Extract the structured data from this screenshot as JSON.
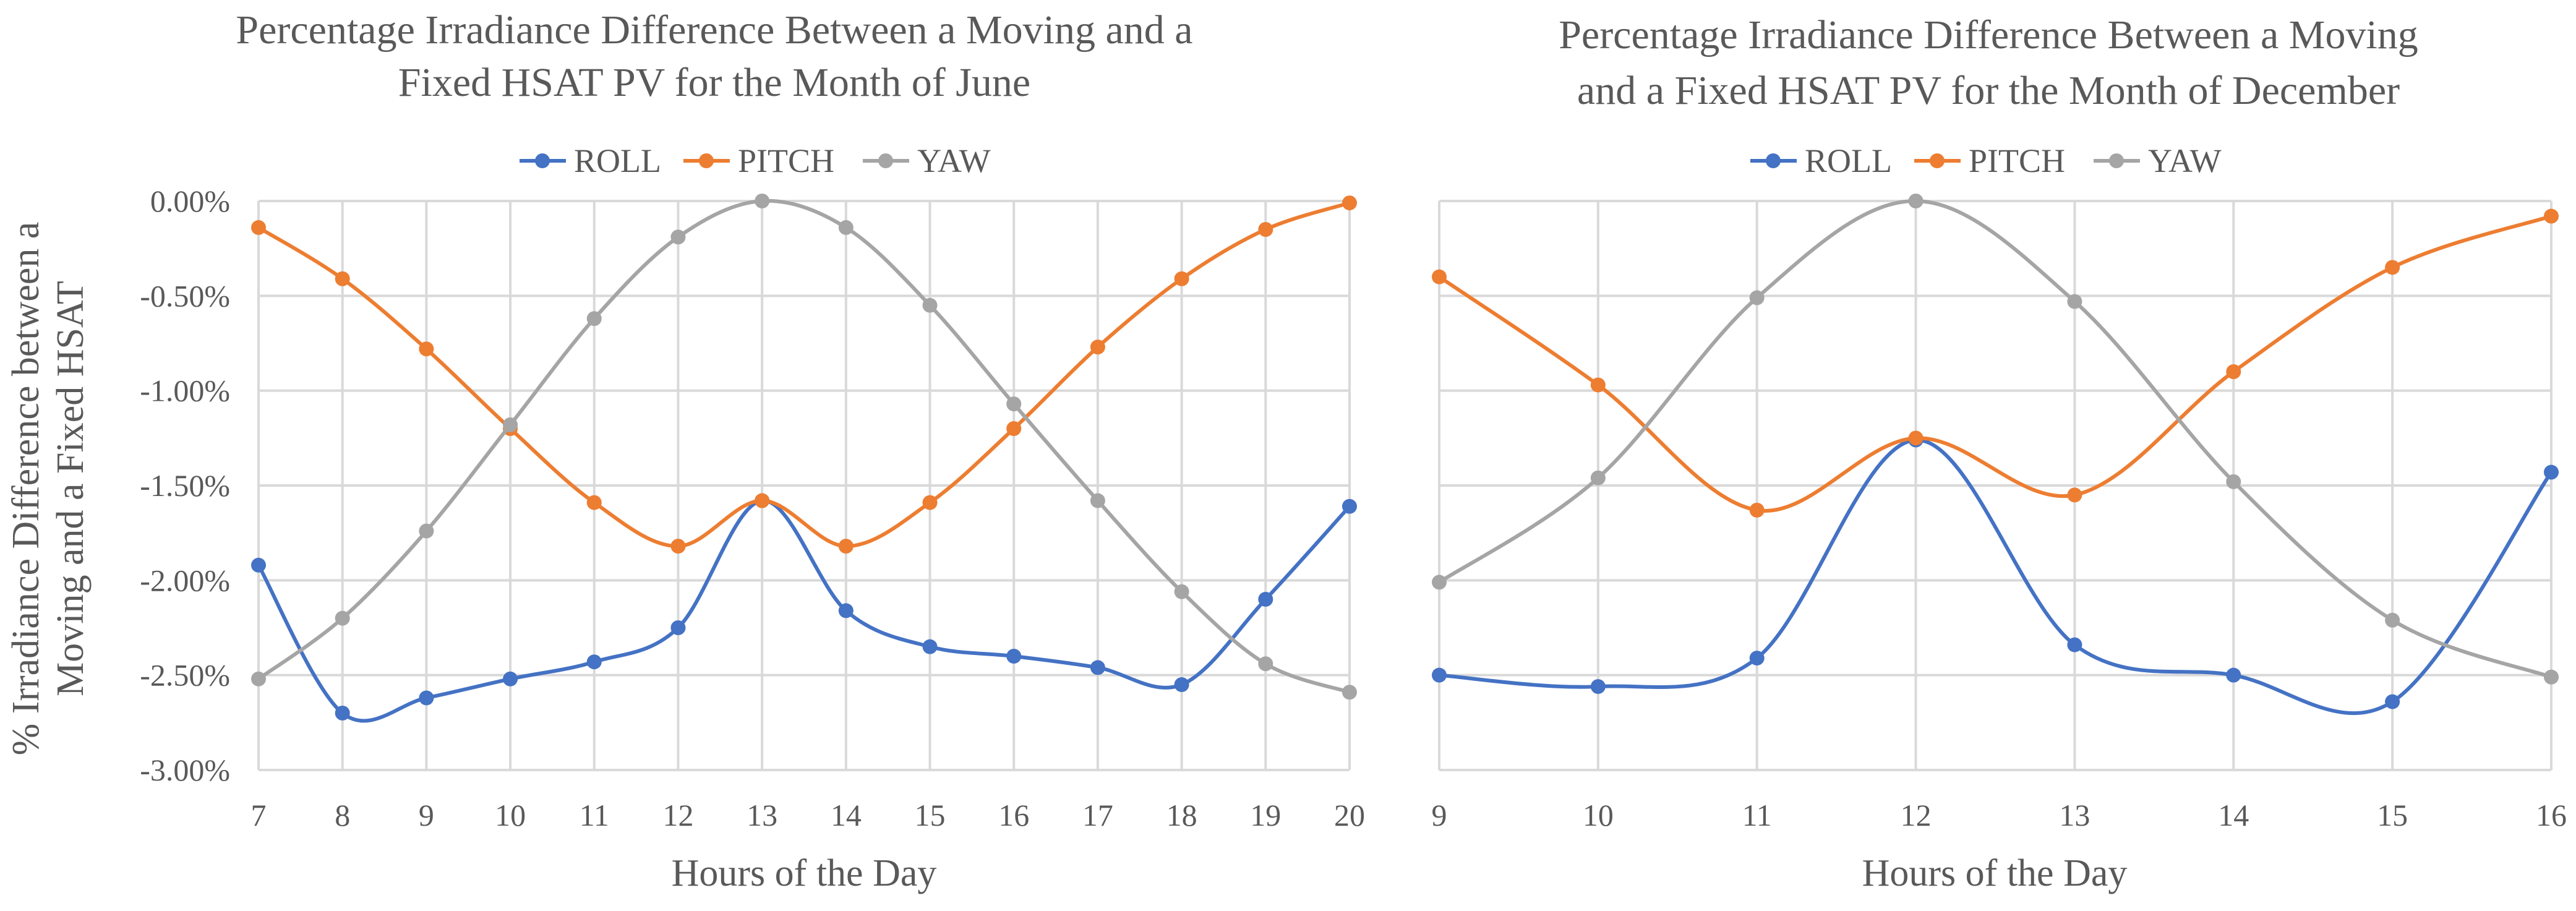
{
  "colors": {
    "ROLL": "#4472c4",
    "PITCH": "#ed7d31",
    "YAW": "#a5a5a5",
    "grid": "#d9d9d9",
    "text": "#595959"
  },
  "y_axis_title": [
    "% Irradiance Difference between a",
    "Moving and a Fixed HSAT"
  ],
  "chart_data": [
    {
      "type": "line",
      "title": [
        "Percentage Irradiance Difference Between a Moving and a",
        "Fixed HSAT PV for the Month of June"
      ],
      "xlabel": "Hours of the Day",
      "categories": [
        "7",
        "8",
        "9",
        "10",
        "11",
        "12",
        "13",
        "14",
        "15",
        "16",
        "17",
        "18",
        "19",
        "20"
      ],
      "ylim": [
        -3.0,
        0.0
      ],
      "yticks": [
        0.0,
        -0.5,
        -1.0,
        -1.5,
        -2.0,
        -2.5,
        -3.0
      ],
      "ytick_labels": [
        "0.00%",
        "-0.50%",
        "-1.00%",
        "-1.50%",
        "-2.00%",
        "-2.50%",
        "-3.00%"
      ],
      "show_ytick_labels": true,
      "legend": "top-center",
      "series": [
        {
          "name": "ROLL",
          "values": [
            -1.92,
            -2.7,
            -2.62,
            -2.52,
            -2.43,
            -2.25,
            -1.58,
            -2.16,
            -2.35,
            -2.4,
            -2.46,
            -2.55,
            -2.1,
            -1.61
          ]
        },
        {
          "name": "PITCH",
          "values": [
            -0.14,
            -0.41,
            -0.78,
            -1.2,
            -1.59,
            -1.82,
            -1.58,
            -1.82,
            -1.59,
            -1.2,
            -0.77,
            -0.41,
            -0.15,
            -0.01
          ]
        },
        {
          "name": "YAW",
          "values": [
            -2.52,
            -2.2,
            -1.74,
            -1.18,
            -0.62,
            -0.19,
            0.0,
            -0.14,
            -0.55,
            -1.07,
            -1.58,
            -2.06,
            -2.44,
            -2.59
          ]
        }
      ]
    },
    {
      "type": "line",
      "title": [
        "Percentage Irradiance Difference Between a Moving",
        "and a Fixed HSAT PV for the Month of December"
      ],
      "xlabel": "Hours of the Day",
      "categories": [
        "9",
        "10",
        "11",
        "12",
        "13",
        "14",
        "15",
        "16"
      ],
      "ylim": [
        -3.0,
        0.0
      ],
      "yticks": [
        0.0,
        -0.5,
        -1.0,
        -1.5,
        -2.0,
        -2.5,
        -3.0
      ],
      "show_ytick_labels": false,
      "legend": "top-center",
      "series": [
        {
          "name": "ROLL",
          "values": [
            -2.5,
            -2.56,
            -2.41,
            -1.26,
            -2.34,
            -2.5,
            -2.64,
            -1.43
          ]
        },
        {
          "name": "PITCH",
          "values": [
            -0.4,
            -0.97,
            -1.63,
            -1.25,
            -1.55,
            -0.9,
            -0.35,
            -0.08
          ]
        },
        {
          "name": "YAW",
          "values": [
            -2.01,
            -1.46,
            -0.51,
            0.0,
            -0.53,
            -1.48,
            -2.21,
            -2.51
          ]
        }
      ]
    }
  ]
}
